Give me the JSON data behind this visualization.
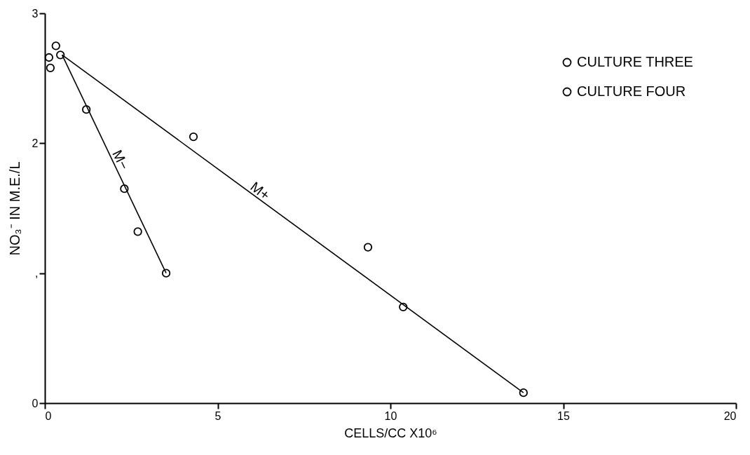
{
  "chart_data": {
    "type": "scatter",
    "xlabel": "CELLS/CC X10⁶",
    "ylabel": "NO₃⁻ IN M.E./L",
    "xlim": [
      0,
      20
    ],
    "xticks": [
      0,
      5,
      10,
      15,
      20
    ],
    "ylim": [
      0,
      3
    ],
    "yticks": [
      0,
      {
        "value": 1,
        "label": ","
      },
      2,
      3
    ],
    "grid": false,
    "legend": "top right",
    "series": [
      {
        "name": "CULTURE THREE",
        "color": "#000000",
        "marker": "circle",
        "x": [
          0.16,
          0.45,
          4.3,
          9.35,
          10.37,
          13.85
        ],
        "values": [
          2.58,
          2.68,
          2.05,
          1.2,
          0.74,
          0.08
        ]
      },
      {
        "name": "CULTURE FOUR",
        "color": "#000000",
        "marker": "circle",
        "x": [
          0.12,
          0.32,
          1.2,
          2.3,
          2.69,
          3.51
        ],
        "values": [
          2.66,
          2.75,
          2.26,
          1.65,
          1.32,
          1.0
        ]
      },
      {
        "type": "line",
        "color": "#000000",
        "line_style": "solid",
        "x": [
          0.5,
          3.51
        ],
        "values": [
          2.68,
          1.0
        ]
      },
      {
        "type": "line",
        "color": "#000000",
        "line_style": "solid",
        "x": [
          0.5,
          13.85
        ],
        "values": [
          2.68,
          0.08
        ]
      }
    ],
    "annotations": [
      "M−",
      "M+"
    ]
  }
}
